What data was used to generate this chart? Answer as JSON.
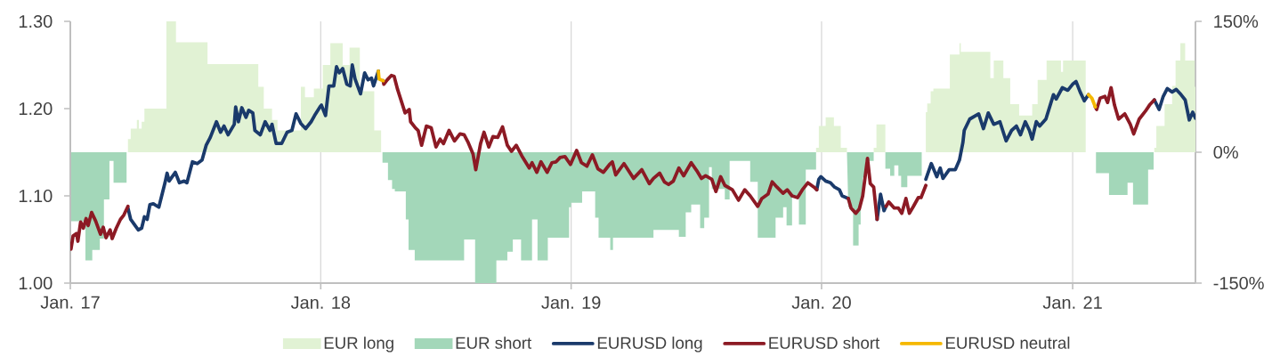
{
  "chart_data": {
    "type": "line",
    "xlim": [
      "2017-01-01",
      "2021-06-29"
    ],
    "xticks": [
      {
        "value": "2017-01-01",
        "label": "Jan. 17"
      },
      {
        "value": "2018-01-01",
        "label": "Jan. 18"
      },
      {
        "value": "2019-01-01",
        "label": "Jan. 19"
      },
      {
        "value": "2020-01-01",
        "label": "Jan. 20"
      },
      {
        "value": "2021-01-01",
        "label": "Jan. 21"
      }
    ],
    "ylim": [
      1.0,
      1.3
    ],
    "yticks": [
      {
        "value": 1.0,
        "label": "1.00"
      },
      {
        "value": 1.1,
        "label": "1.10"
      },
      {
        "value": 1.2,
        "label": "1.20"
      },
      {
        "value": 1.3,
        "label": "1.30"
      }
    ],
    "y2lim": [
      -150,
      150
    ],
    "y2ticks": [
      {
        "value": -150,
        "label": "-150%"
      },
      {
        "value": 0,
        "label": "0%"
      },
      {
        "value": 150,
        "label": "150%"
      }
    ],
    "grid": "x",
    "legend": "bottom",
    "x": [
      "2017-01-02",
      "2017-01-05",
      "2017-01-10",
      "2017-01-12",
      "2017-01-16",
      "2017-01-20",
      "2017-01-24",
      "2017-01-27",
      "2017-02-01",
      "2017-02-07",
      "2017-02-14",
      "2017-02-18",
      "2017-02-22",
      "2017-02-28",
      "2017-03-03",
      "2017-03-09",
      "2017-03-15",
      "2017-03-20",
      "2017-03-26",
      "2017-03-30",
      "2017-04-10",
      "2017-04-15",
      "2017-04-19",
      "2017-04-23",
      "2017-04-27",
      "2017-05-02",
      "2017-05-10",
      "2017-05-19",
      "2017-05-22",
      "2017-05-25",
      "2017-06-03",
      "2017-06-09",
      "2017-06-16",
      "2017-06-20",
      "2017-06-28",
      "2017-07-05",
      "2017-07-12",
      "2017-07-18",
      "2017-07-24",
      "2017-08-02",
      "2017-08-08",
      "2017-08-13",
      "2017-08-19",
      "2017-08-28",
      "2017-08-30",
      "2017-09-03",
      "2017-09-08",
      "2017-09-14",
      "2017-09-18",
      "2017-09-24",
      "2017-09-27",
      "2017-10-05",
      "2017-10-12",
      "2017-10-19",
      "2017-10-22",
      "2017-10-28",
      "2017-11-05",
      "2017-11-13",
      "2017-11-20",
      "2017-11-26",
      "2017-12-03",
      "2017-12-10",
      "2017-12-18",
      "2017-12-23",
      "2017-12-31",
      "2018-01-02",
      "2018-01-08",
      "2018-01-13",
      "2018-01-20",
      "2018-01-24",
      "2018-01-28",
      "2018-02-02",
      "2018-02-08",
      "2018-02-13",
      "2018-02-16",
      "2018-02-20",
      "2018-02-28",
      "2018-03-06",
      "2018-03-11",
      "2018-03-16",
      "2018-03-19",
      "2018-03-26",
      "2018-03-27",
      "2018-04-02",
      "2018-04-03",
      "2018-04-08",
      "2018-04-14",
      "2018-04-18",
      "2018-04-23",
      "2018-05-04",
      "2018-05-10",
      "2018-05-12",
      "2018-05-19",
      "2018-05-23",
      "2018-05-28",
      "2018-06-04",
      "2018-06-11",
      "2018-06-18",
      "2018-06-24",
      "2018-06-29",
      "2018-07-07",
      "2018-07-15",
      "2018-07-23",
      "2018-07-29",
      "2018-08-04",
      "2018-08-11",
      "2018-08-15",
      "2018-08-22",
      "2018-08-27",
      "2018-09-03",
      "2018-09-09",
      "2018-09-16",
      "2018-09-23",
      "2018-09-30",
      "2018-10-06",
      "2018-10-13",
      "2018-10-21",
      "2018-10-28",
      "2018-11-01",
      "2018-11-05",
      "2018-11-12",
      "2018-11-18",
      "2018-11-27",
      "2018-12-04",
      "2018-12-10",
      "2018-12-16",
      "2018-12-23",
      "2018-12-31",
      "2019-01-09",
      "2019-01-16",
      "2019-01-24",
      "2019-02-01",
      "2019-02-09",
      "2019-02-17",
      "2019-02-26",
      "2019-03-02",
      "2019-03-07",
      "2019-03-19",
      "2019-04-02",
      "2019-04-14",
      "2019-04-25",
      "2019-05-01",
      "2019-05-10",
      "2019-05-17",
      "2019-05-23",
      "2019-05-30",
      "2019-06-07",
      "2019-06-14",
      "2019-06-25",
      "2019-07-03",
      "2019-07-10",
      "2019-07-16",
      "2019-07-25",
      "2019-07-31",
      "2019-08-07",
      "2019-08-13",
      "2019-08-24",
      "2019-09-02",
      "2019-09-11",
      "2019-09-19",
      "2019-09-30",
      "2019-10-06",
      "2019-10-15",
      "2019-10-21",
      "2019-10-28",
      "2019-11-06",
      "2019-11-12",
      "2019-11-19",
      "2019-11-27",
      "2019-12-04",
      "2019-12-12",
      "2019-12-21",
      "2019-12-25",
      "2019-12-28",
      "2019-12-31",
      "2020-01-07",
      "2020-01-14",
      "2020-01-20",
      "2020-01-27",
      "2020-01-31",
      "2020-02-09",
      "2020-02-13",
      "2020-02-20",
      "2020-02-25",
      "2020-03-01",
      "2020-03-08",
      "2020-03-12",
      "2020-03-17",
      "2020-03-22",
      "2020-03-27",
      "2020-04-01",
      "2020-04-04",
      "2020-04-08",
      "2020-04-16",
      "2020-04-22",
      "2020-04-27",
      "2020-05-03",
      "2020-05-08",
      "2020-05-14",
      "2020-05-21",
      "2020-05-25",
      "2020-06-01",
      "2020-06-09",
      "2020-06-17",
      "2020-06-22",
      "2020-06-26",
      "2020-07-05",
      "2020-07-14",
      "2020-07-20",
      "2020-07-25",
      "2020-07-27",
      "2020-08-04",
      "2020-08-17",
      "2020-08-24",
      "2020-08-31",
      "2020-09-08",
      "2020-09-17",
      "2020-09-26",
      "2020-10-04",
      "2020-10-11",
      "2020-10-17",
      "2020-10-24",
      "2020-10-30",
      "2020-11-03",
      "2020-11-09",
      "2020-11-14",
      "2020-11-23",
      "2020-12-04",
      "2020-12-08",
      "2020-12-17",
      "2020-12-25",
      "2021-01-01",
      "2021-01-06",
      "2021-01-12",
      "2021-01-18",
      "2021-01-24",
      "2021-01-29",
      "2021-02-03",
      "2021-02-05",
      "2021-02-10",
      "2021-02-17",
      "2021-02-21",
      "2021-02-26",
      "2021-03-03",
      "2021-03-09",
      "2021-03-18",
      "2021-03-26",
      "2021-03-31",
      "2021-04-08",
      "2021-04-17",
      "2021-04-23",
      "2021-04-30",
      "2021-05-07",
      "2021-05-13",
      "2021-05-19",
      "2021-05-26",
      "2021-06-01",
      "2021-06-08",
      "2021-06-14",
      "2021-06-20",
      "2021-06-25",
      "2021-06-29"
    ],
    "series": [
      {
        "name": "EUR long",
        "type": "area",
        "axis": "y2",
        "color": "#e1f2d4",
        "x": [
          "2017-01-01",
          "2017-03-26",
          "2017-03-26",
          "2017-03-30",
          "2017-03-30",
          "2017-04-08",
          "2017-04-08",
          "2017-04-11",
          "2017-04-11",
          "2017-04-15",
          "2017-04-15",
          "2017-04-19",
          "2017-04-19",
          "2017-05-21",
          "2017-05-21",
          "2017-06-04",
          "2017-06-04",
          "2017-07-20",
          "2017-07-20",
          "2017-10-02",
          "2017-10-02",
          "2017-10-10",
          "2017-10-10",
          "2017-10-22",
          "2017-10-22",
          "2017-10-30",
          "2017-10-30",
          "2017-12-03",
          "2017-12-03",
          "2017-12-09",
          "2017-12-09",
          "2017-12-22",
          "2017-12-22",
          "2018-01-04",
          "2018-01-04",
          "2018-01-15",
          "2018-01-15",
          "2018-02-02",
          "2018-02-02",
          "2018-02-12",
          "2018-02-12",
          "2018-02-27",
          "2018-02-27",
          "2018-03-20",
          "2018-03-20",
          "2018-03-30",
          "2018-03-30",
          "2019-12-24",
          "2019-12-24",
          "2019-12-28",
          "2019-12-28",
          "2020-01-07",
          "2020-01-07",
          "2020-01-19",
          "2020-01-19",
          "2020-01-29",
          "2020-01-29",
          "2020-02-07",
          "2020-02-07",
          "2020-03-17",
          "2020-03-17",
          "2020-03-21",
          "2020-03-21",
          "2020-04-03",
          "2020-04-03",
          "2020-06-01",
          "2020-06-01",
          "2020-06-03",
          "2020-06-03",
          "2020-06-08",
          "2020-06-08",
          "2020-06-12",
          "2020-06-12",
          "2020-07-06",
          "2020-07-06",
          "2020-07-20",
          "2020-07-20",
          "2020-07-22",
          "2020-07-22",
          "2020-09-03",
          "2020-09-03",
          "2020-09-08",
          "2020-09-08",
          "2020-09-22",
          "2020-09-22",
          "2020-10-02",
          "2020-10-02",
          "2020-10-15",
          "2020-10-15",
          "2020-11-03",
          "2020-11-03",
          "2020-11-11",
          "2020-11-11",
          "2020-11-24",
          "2020-11-24",
          "2020-12-15",
          "2020-12-15",
          "2020-12-18",
          "2020-12-18",
          "2021-01-20",
          "2021-01-20",
          "2021-04-30",
          "2021-04-30",
          "2021-05-03",
          "2021-05-03",
          "2021-05-15",
          "2021-05-15",
          "2021-05-26",
          "2021-05-26",
          "2021-05-31",
          "2021-05-31",
          "2021-06-07",
          "2021-06-07",
          "2021-06-14",
          "2021-06-14",
          "2021-06-28",
          "2021-06-28",
          "2021-06-29"
        ],
        "values": [
          0,
          0,
          15,
          15,
          27,
          27,
          37,
          37,
          27,
          27,
          35,
          35,
          50,
          50,
          150,
          150,
          126,
          126,
          101,
          101,
          75,
          75,
          50,
          50,
          37,
          37,
          25,
          25,
          75,
          75,
          63,
          63,
          73,
          73,
          100,
          100,
          125,
          125,
          100,
          100,
          120,
          120,
          70,
          70,
          25,
          25,
          0,
          0,
          5,
          5,
          30,
          30,
          40,
          40,
          30,
          30,
          5,
          5,
          0,
          0,
          5,
          5,
          32,
          32,
          0,
          0,
          46,
          46,
          56,
          56,
          70,
          70,
          73,
          73,
          112,
          112,
          125,
          125,
          115,
          115,
          85,
          85,
          105,
          105,
          85,
          85,
          55,
          55,
          42,
          42,
          55,
          55,
          83,
          83,
          105,
          105,
          92,
          92,
          105,
          105,
          0,
          0,
          5,
          5,
          30,
          30,
          55,
          55,
          76,
          76,
          105,
          105,
          125,
          125,
          105,
          105,
          75,
          75
        ]
      },
      {
        "name": "EUR short",
        "type": "area",
        "axis": "y2",
        "color": "#a3d7b9",
        "x": [
          "2017-01-01",
          "2017-01-23",
          "2017-01-23",
          "2017-02-02",
          "2017-02-02",
          "2017-02-13",
          "2017-02-13",
          "2017-02-19",
          "2017-02-19",
          "2017-02-27",
          "2017-02-27",
          "2017-03-05",
          "2017-03-05",
          "2017-03-24",
          "2017-03-24",
          "2018-04-01",
          "2018-04-01",
          "2018-04-09",
          "2018-04-09",
          "2018-04-15",
          "2018-04-15",
          "2018-04-19",
          "2018-04-19",
          "2018-05-05",
          "2018-05-05",
          "2018-05-09",
          "2018-05-09",
          "2018-05-18",
          "2018-05-18",
          "2018-07-29",
          "2018-07-29",
          "2018-08-14",
          "2018-08-14",
          "2018-09-14",
          "2018-09-14",
          "2018-09-30",
          "2018-09-30",
          "2018-10-08",
          "2018-10-08",
          "2018-10-20",
          "2018-10-20",
          "2018-11-05",
          "2018-11-05",
          "2018-11-13",
          "2018-11-13",
          "2018-11-28",
          "2018-11-28",
          "2018-12-29",
          "2018-12-29",
          "2019-01-01",
          "2019-01-01",
          "2019-01-17",
          "2019-01-17",
          "2019-02-05",
          "2019-02-05",
          "2019-02-10",
          "2019-02-10",
          "2019-02-27",
          "2019-02-27",
          "2019-03-03",
          "2019-03-03",
          "2019-05-01",
          "2019-05-01",
          "2019-06-07",
          "2019-06-07",
          "2019-06-17",
          "2019-06-17",
          "2019-06-25",
          "2019-06-25",
          "2019-07-08",
          "2019-07-08",
          "2019-07-14",
          "2019-07-14",
          "2019-07-21",
          "2019-07-21",
          "2019-07-25",
          "2019-07-25",
          "2019-08-13",
          "2019-08-13",
          "2019-08-20",
          "2019-08-20",
          "2019-09-19",
          "2019-09-19",
          "2019-09-30",
          "2019-09-30",
          "2019-10-26",
          "2019-10-26",
          "2019-11-06",
          "2019-11-06",
          "2019-11-11",
          "2019-11-11",
          "2019-11-19",
          "2019-11-19",
          "2019-11-29",
          "2019-11-29",
          "2019-12-09",
          "2019-12-09",
          "2019-12-24",
          "2019-12-24",
          "2020-02-07",
          "2020-02-09",
          "2020-02-16",
          "2020-02-16",
          "2020-02-24",
          "2020-02-24",
          "2020-02-27",
          "2020-02-27",
          "2020-03-01",
          "2020-03-01",
          "2020-03-05",
          "2020-03-05",
          "2020-03-17",
          "2020-03-17",
          "2020-04-03",
          "2020-04-03",
          "2020-04-10",
          "2020-04-10",
          "2020-04-16",
          "2020-04-16",
          "2020-04-22",
          "2020-04-22",
          "2020-04-26",
          "2020-04-26",
          "2020-05-05",
          "2020-05-05",
          "2020-05-26",
          "2020-05-26",
          "2021-02-04",
          "2021-02-04",
          "2021-02-23",
          "2021-02-23",
          "2021-03-22",
          "2021-03-22",
          "2021-03-30",
          "2021-03-30",
          "2021-04-21",
          "2021-04-21",
          "2021-04-29",
          "2021-04-29",
          "2021-06-29"
        ],
        "values": [
          -79,
          -79,
          -124,
          -124,
          -112,
          -112,
          -99,
          -99,
          -54,
          -54,
          -10,
          -10,
          -35,
          -35,
          0,
          0,
          -12,
          -12,
          -32,
          -32,
          -42,
          -42,
          -45,
          -45,
          -77,
          -77,
          -112,
          -112,
          -124,
          -124,
          -100,
          -100,
          -150,
          -150,
          -124,
          -124,
          -114,
          -114,
          -100,
          -100,
          -124,
          -124,
          -77,
          -77,
          -124,
          -124,
          -98,
          -98,
          -63,
          -63,
          -58,
          -58,
          -45,
          -45,
          -75,
          -75,
          -98,
          -98,
          -112,
          -112,
          -98,
          -98,
          -89,
          -89,
          -97,
          -97,
          -69,
          -69,
          -60,
          -60,
          -87,
          -87,
          -75,
          -75,
          -17,
          -17,
          -42,
          -42,
          -54,
          -54,
          -10,
          -10,
          -34,
          -34,
          -98,
          -98,
          -75,
          -75,
          -63,
          -63,
          -84,
          -84,
          -51,
          -51,
          -83,
          -83,
          -20,
          -20,
          0,
          0,
          -63,
          -63,
          -107,
          -107,
          -83,
          -83,
          -51,
          -51,
          -29,
          -29,
          -10,
          -10,
          0,
          0,
          -19,
          -19,
          -27,
          -27,
          -15,
          -15,
          -27,
          -27,
          -40,
          -40,
          -27,
          -27,
          0,
          0,
          -24,
          -24,
          -49,
          -49,
          -35,
          -35,
          -60,
          -60,
          -20,
          -20,
          0,
          0
        ]
      },
      {
        "name": "EURUSD long",
        "color": "#1a3a6b",
        "values": [
          null,
          null,
          null,
          null,
          null,
          null,
          null,
          null,
          null,
          null,
          null,
          null,
          null,
          null,
          null,
          null,
          null,
          null,
          1.086,
          1.073,
          1.061,
          1.063,
          1.076,
          1.073,
          1.09,
          1.091,
          1.087,
          1.115,
          1.126,
          1.117,
          1.127,
          1.115,
          1.117,
          1.115,
          1.139,
          1.137,
          1.141,
          1.158,
          1.167,
          1.185,
          1.173,
          1.18,
          1.17,
          1.182,
          1.202,
          1.185,
          1.201,
          1.19,
          1.198,
          1.195,
          1.175,
          1.17,
          1.185,
          1.175,
          1.182,
          1.16,
          1.16,
          1.173,
          1.175,
          1.194,
          1.183,
          1.177,
          1.185,
          1.192,
          1.202,
          1.204,
          1.192,
          1.226,
          1.226,
          1.248,
          1.241,
          1.246,
          1.228,
          1.226,
          1.25,
          1.234,
          1.217,
          1.241,
          1.233,
          1.235,
          1.226,
          1.243,
          null,
          null,
          null,
          null,
          null,
          null,
          null,
          null,
          null,
          null,
          null,
          null,
          null,
          null,
          null,
          null,
          null,
          null,
          null,
          null,
          null,
          null,
          null,
          null,
          null,
          null,
          null,
          null,
          null,
          null,
          null,
          null,
          null,
          null,
          null,
          null,
          null,
          null,
          null,
          null,
          null,
          null,
          null,
          null,
          null,
          null,
          null,
          null,
          null,
          null,
          null,
          null,
          null,
          null,
          null,
          null,
          null,
          null,
          null,
          null,
          null,
          null,
          null,
          null,
          null,
          null,
          null,
          null,
          null,
          null,
          null,
          null,
          null,
          null,
          null,
          null,
          null,
          null,
          null,
          null,
          null,
          null,
          null,
          null,
          null,
          null,
          null,
          null,
          null,
          null,
          1.107,
          1.119,
          1.122,
          1.117,
          1.115,
          1.11,
          1.107,
          1.1,
          1.097,
          null,
          null,
          null,
          null,
          null,
          null,
          null,
          1.073,
          1.102,
          1.083,
          1.088,
          null,
          null,
          null,
          null,
          null,
          null,
          null,
          null,
          null,
          1.119,
          1.137,
          1.122,
          1.132,
          1.12,
          1.13,
          1.13,
          1.141,
          1.161,
          1.175,
          1.188,
          1.194,
          1.177,
          1.195,
          1.182,
          1.185,
          1.163,
          1.175,
          1.18,
          1.17,
          1.185,
          1.175,
          1.165,
          1.185,
          1.18,
          1.188,
          1.216,
          1.211,
          1.224,
          1.221,
          1.228,
          1.231,
          1.219,
          1.209,
          1.216,
          null,
          null,
          null,
          null,
          null,
          null,
          null,
          null,
          null,
          null,
          null,
          null,
          null,
          null,
          null,
          1.21,
          1.199,
          1.214,
          1.223,
          1.219,
          1.222,
          1.216,
          1.21,
          1.187,
          1.196,
          1.189
        ]
      },
      {
        "name": "EURUSD short",
        "color": "#8c1a24",
        "values": [
          1.039,
          1.054,
          1.057,
          1.048,
          1.07,
          1.063,
          1.074,
          1.066,
          1.081,
          1.071,
          1.056,
          1.064,
          1.052,
          1.061,
          1.051,
          1.063,
          1.073,
          1.078,
          1.088,
          null,
          null,
          null,
          null,
          null,
          null,
          null,
          null,
          null,
          null,
          null,
          null,
          null,
          null,
          null,
          null,
          null,
          null,
          null,
          null,
          null,
          null,
          null,
          null,
          null,
          null,
          null,
          null,
          null,
          null,
          null,
          null,
          null,
          null,
          null,
          null,
          null,
          null,
          null,
          null,
          null,
          null,
          null,
          null,
          null,
          null,
          null,
          null,
          null,
          null,
          null,
          null,
          null,
          null,
          null,
          null,
          null,
          null,
          null,
          null,
          null,
          null,
          null,
          null,
          1.232,
          1.228,
          1.233,
          1.238,
          1.237,
          1.222,
          1.195,
          1.199,
          1.185,
          1.178,
          1.175,
          1.158,
          1.18,
          1.178,
          1.156,
          1.165,
          1.16,
          1.175,
          1.163,
          1.171,
          1.17,
          1.161,
          1.148,
          1.13,
          1.16,
          1.173,
          1.156,
          1.168,
          1.167,
          1.179,
          1.158,
          1.151,
          1.158,
          1.146,
          1.137,
          1.132,
          1.138,
          1.127,
          1.139,
          1.127,
          1.138,
          1.139,
          1.144,
          1.145,
          1.136,
          1.152,
          1.138,
          1.134,
          1.147,
          1.131,
          1.127,
          1.136,
          1.139,
          1.124,
          1.137,
          1.12,
          1.13,
          1.114,
          1.12,
          1.126,
          1.116,
          1.113,
          1.117,
          1.132,
          1.123,
          1.138,
          1.129,
          1.12,
          1.123,
          1.119,
          1.105,
          1.122,
          1.112,
          1.107,
          1.095,
          1.107,
          1.1,
          1.088,
          1.097,
          1.102,
          1.116,
          1.11,
          1.103,
          1.107,
          1.1,
          1.098,
          1.107,
          1.115,
          1.11,
          1.107,
          null,
          null,
          null,
          null,
          null,
          null,
          null,
          1.097,
          1.086,
          1.08,
          1.085,
          1.1,
          1.143,
          1.114,
          1.11,
          1.073,
          null,
          null,
          1.088,
          1.093,
          1.086,
          1.086,
          1.08,
          1.097,
          1.08,
          1.088,
          1.098,
          1.098,
          1.112,
          null,
          null,
          null,
          null,
          null,
          null,
          null,
          null,
          null,
          null,
          null,
          null,
          null,
          null,
          null,
          null,
          null,
          null,
          null,
          null,
          null,
          null,
          null,
          null,
          null,
          null,
          null,
          null,
          null,
          null,
          null,
          null,
          null,
          null,
          null,
          1.202,
          1.199,
          1.212,
          1.214,
          1.207,
          1.224,
          1.204,
          1.188,
          1.194,
          1.182,
          1.171,
          1.188,
          1.197,
          1.204,
          1.21,
          null,
          null,
          null,
          null,
          null,
          null,
          null,
          null,
          null,
          null
        ]
      },
      {
        "name": "EURUSD neutral",
        "color": "#f5b800",
        "values": [
          null,
          null,
          null,
          null,
          null,
          null,
          null,
          null,
          null,
          null,
          null,
          null,
          null,
          null,
          null,
          null,
          null,
          null,
          null,
          null,
          null,
          null,
          null,
          null,
          null,
          null,
          null,
          null,
          null,
          null,
          null,
          null,
          null,
          null,
          null,
          null,
          null,
          null,
          null,
          null,
          null,
          null,
          null,
          null,
          null,
          null,
          null,
          null,
          null,
          null,
          null,
          null,
          null,
          null,
          null,
          null,
          null,
          null,
          null,
          null,
          null,
          null,
          null,
          null,
          null,
          null,
          null,
          null,
          null,
          null,
          null,
          null,
          null,
          null,
          null,
          null,
          null,
          null,
          null,
          null,
          null,
          1.243,
          1.234,
          1.232,
          null,
          null,
          null,
          null,
          null,
          null,
          null,
          null,
          null,
          null,
          null,
          null,
          null,
          null,
          null,
          null,
          null,
          null,
          null,
          null,
          null,
          null,
          null,
          null,
          null,
          null,
          null,
          null,
          null,
          null,
          null,
          null,
          null,
          null,
          null,
          null,
          null,
          null,
          null,
          null,
          null,
          null,
          null,
          null,
          null,
          null,
          null,
          null,
          null,
          null,
          null,
          null,
          null,
          null,
          null,
          null,
          null,
          null,
          null,
          null,
          null,
          null,
          null,
          null,
          null,
          null,
          null,
          null,
          null,
          null,
          null,
          null,
          null,
          null,
          null,
          null,
          null,
          null,
          null,
          null,
          null,
          null,
          null,
          null,
          null,
          null,
          null,
          null,
          null,
          null,
          null,
          null,
          null,
          null,
          null,
          null,
          null,
          null,
          null,
          null,
          null,
          null,
          null,
          null,
          null,
          null,
          null,
          null,
          null,
          null,
          null,
          null,
          null,
          null,
          null,
          null,
          null,
          null,
          null,
          null,
          null,
          null,
          null,
          null,
          null,
          null,
          null,
          null,
          null,
          null,
          null,
          null,
          null,
          null,
          null,
          null,
          null,
          null,
          null,
          null,
          null,
          null,
          null,
          null,
          null,
          null,
          null,
          null,
          null,
          null,
          null,
          1.216,
          1.212,
          1.202,
          null,
          null,
          null,
          null,
          null,
          null,
          null,
          null,
          null,
          null,
          null,
          null,
          null,
          null,
          null,
          null,
          null,
          null,
          null,
          null,
          null,
          null,
          null,
          null
        ]
      }
    ]
  }
}
